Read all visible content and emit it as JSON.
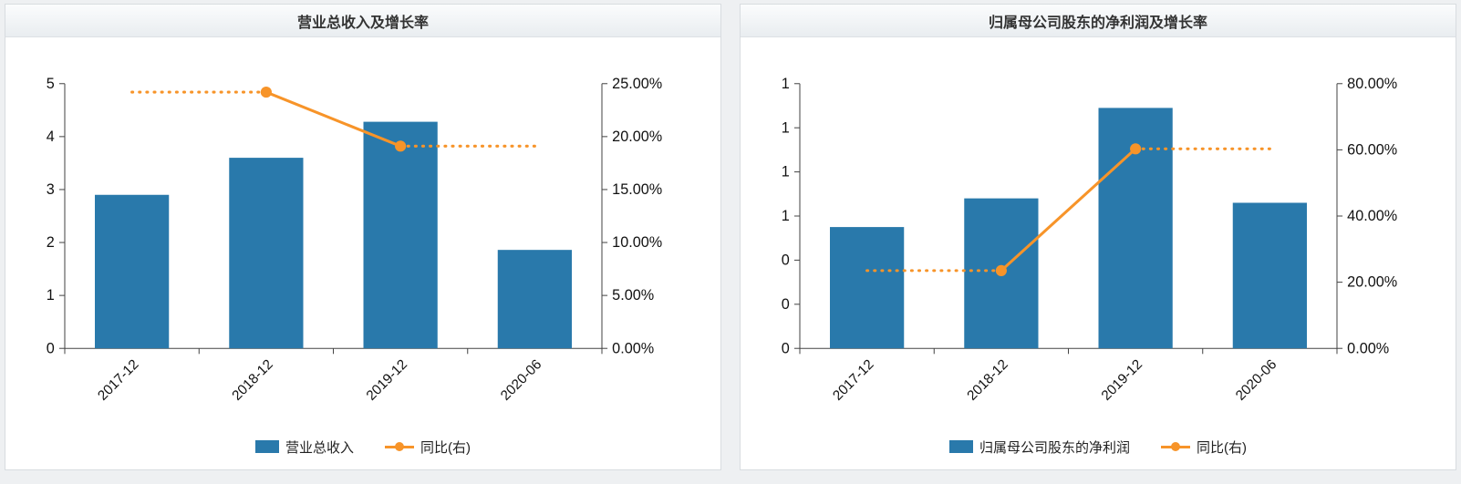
{
  "page": {
    "background_color": "#eef0f2",
    "panel_border_color": "#d8dce0"
  },
  "chart_data": [
    {
      "type": "bar",
      "title": "营业总收入及增长率",
      "categories": [
        "2017-12",
        "2018-12",
        "2019-12",
        "2020-06"
      ],
      "bar_series": {
        "name": "营业总收入",
        "color": "#2979ab",
        "values": [
          2.9,
          3.6,
          4.28,
          1.86
        ]
      },
      "line_series": {
        "name": "同比(右)",
        "color": "#f79429",
        "values": [
          null,
          24.2,
          19.1,
          null
        ],
        "style_note": "dotted flat extensions toward categories without data, solid between real points"
      },
      "left_axis": {
        "tick_labels": [
          "0",
          "1",
          "2",
          "3",
          "4",
          "5"
        ],
        "max": 5
      },
      "right_axis": {
        "tick_labels": [
          "0.00%",
          "5.00%",
          "10.00%",
          "15.00%",
          "20.00%",
          "25.00%"
        ],
        "max": 25
      },
      "legend": [
        "营业总收入",
        "同比(右)"
      ],
      "grid": "off",
      "legend_position": "bottom-center"
    },
    {
      "type": "bar",
      "title": "归属母公司股东的净利润及增长率",
      "categories": [
        "2017-12",
        "2018-12",
        "2019-12",
        "2020-06"
      ],
      "bar_series": {
        "name": "归属母公司股东的净利润",
        "color": "#2979ab",
        "values": [
          0.55,
          0.68,
          1.09,
          0.66
        ]
      },
      "line_series": {
        "name": "同比(右)",
        "color": "#f79429",
        "values": [
          null,
          23.5,
          60.3,
          null
        ],
        "style_note": "dotted flat extensions toward categories without data, solid between real points"
      },
      "left_axis": {
        "tick_labels": [
          "0",
          "0",
          "0",
          "1",
          "1",
          "1",
          "1"
        ],
        "max": 1.2
      },
      "right_axis": {
        "tick_labels": [
          "0.00%",
          "20.00%",
          "40.00%",
          "60.00%",
          "80.00%"
        ],
        "max": 80
      },
      "legend": [
        "归属母公司股东的净利润",
        "同比(右)"
      ],
      "grid": "off",
      "legend_position": "bottom-center"
    }
  ]
}
